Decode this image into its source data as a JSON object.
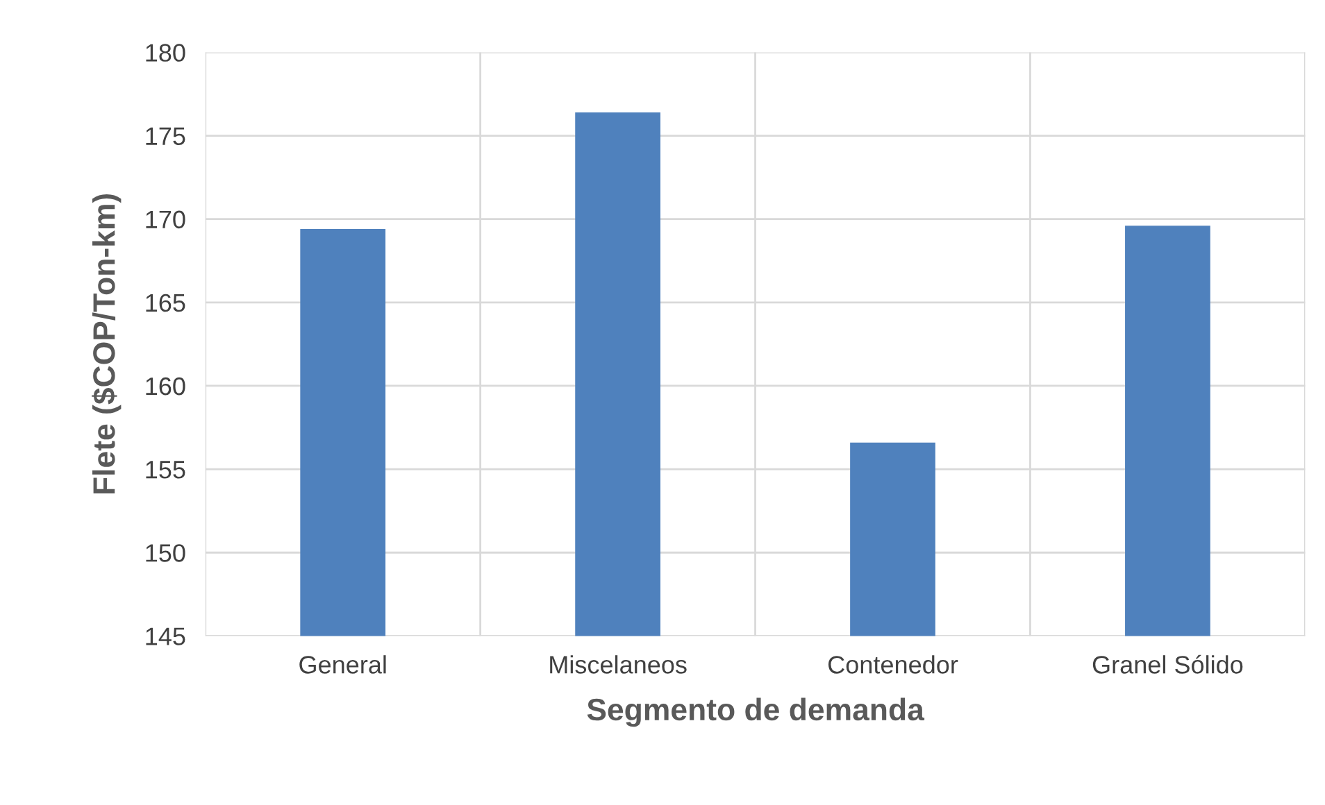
{
  "chart_data": {
    "type": "bar",
    "xlabel": "Segmento de demanda",
    "ylabel": "Flete ($COP/Ton-km)",
    "categories": [
      "General",
      "Miscelaneos",
      "Contenedor",
      "Granel Sólido"
    ],
    "values": [
      169.4,
      176.4,
      156.6,
      169.6
    ],
    "color": "#4f81bd",
    "ylim": [
      145,
      180
    ],
    "yticks": [
      145,
      150,
      155,
      160,
      165,
      170,
      175,
      180
    ],
    "grid": true
  }
}
